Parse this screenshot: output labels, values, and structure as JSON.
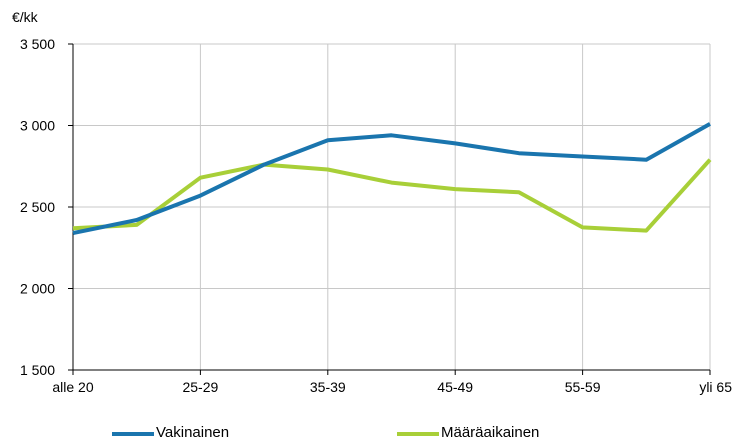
{
  "chart_data": {
    "type": "line",
    "unit_label": "€/kk",
    "categories": [
      "alle 20",
      "20-24",
      "25-29",
      "30-34",
      "35-39",
      "40-44",
      "45-49",
      "50-54",
      "55-59",
      "60-64",
      "yli 65"
    ],
    "shown_x_tick_labels": [
      "alle 20",
      "25-29",
      "35-39",
      "45-49",
      "55-59",
      "yli 65"
    ],
    "y_ticks": [
      1500,
      2000,
      2500,
      3000,
      3500
    ],
    "y_tick_labels": [
      "1 500",
      "2 000",
      "2 500",
      "3 000",
      "3 500"
    ],
    "ylim": [
      1500,
      3500
    ],
    "grid": true,
    "legend_position": "bottom",
    "series": [
      {
        "name": "Vakinainen",
        "color": "#1a75ae",
        "values": [
          2340,
          2420,
          2570,
          2760,
          2910,
          2940,
          2890,
          2830,
          2810,
          2790,
          3010
        ]
      },
      {
        "name": "Määräaikainen",
        "color": "#a8cf38",
        "values": [
          2370,
          2390,
          2680,
          2760,
          2730,
          2650,
          2610,
          2590,
          2375,
          2355,
          2790
        ]
      }
    ]
  }
}
